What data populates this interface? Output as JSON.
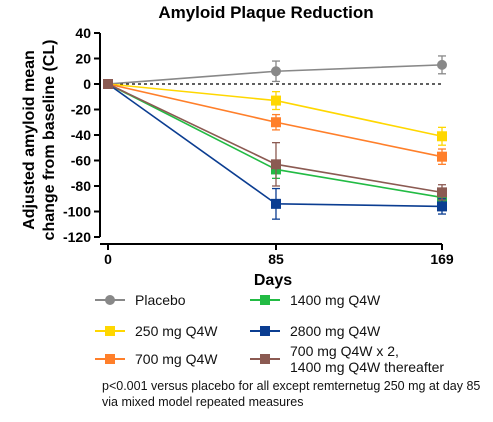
{
  "chart_data": {
    "type": "line",
    "title": "Amyloid Plaque Reduction",
    "xlabel": "Days",
    "ylabel_lines": [
      "Adjusted amyloid mean",
      "change from baseline (CL)"
    ],
    "x": [
      0,
      85,
      169
    ],
    "x_tick_labels": [
      "0",
      "85",
      "169"
    ],
    "ylim": [
      -120,
      40
    ],
    "yticks": [
      40,
      20,
      0,
      -20,
      -40,
      -60,
      -80,
      -100,
      -120
    ],
    "reference_line": {
      "y": 0,
      "style": "dashed"
    },
    "series": [
      {
        "name": "Placebo",
        "color": "#888888",
        "marker": "circle",
        "values": [
          0,
          10,
          15
        ],
        "error": [
          0,
          8,
          7
        ]
      },
      {
        "name": "250 mg Q4W",
        "color": "#FFD700",
        "marker": "square",
        "values": [
          0,
          -13,
          -41
        ],
        "error": [
          0,
          7,
          7
        ]
      },
      {
        "name": "700 mg Q4W",
        "color": "#FF7F2A",
        "marker": "square",
        "values": [
          0,
          -30,
          -57
        ],
        "error": [
          0,
          6,
          6
        ]
      },
      {
        "name": "1400 mg Q4W",
        "color": "#22BB44",
        "marker": "square",
        "values": [
          0,
          -67,
          -89
        ],
        "error": [
          0,
          7,
          5
        ]
      },
      {
        "name": "2800 mg Q4W",
        "color": "#0B3D91",
        "marker": "square",
        "values": [
          0,
          -94,
          -96
        ],
        "error": [
          0,
          12,
          6
        ]
      },
      {
        "name": "700 mg Q4W x 2,\n1400 mg Q4W thereafter",
        "color": "#8B5A52",
        "marker": "square",
        "values": [
          0,
          -63,
          -85
        ],
        "error": [
          0,
          17,
          6
        ]
      }
    ]
  },
  "footnote": "p<0.001 versus placebo for all except remternetug 250 mg at day 85 via mixed model repeated measures"
}
